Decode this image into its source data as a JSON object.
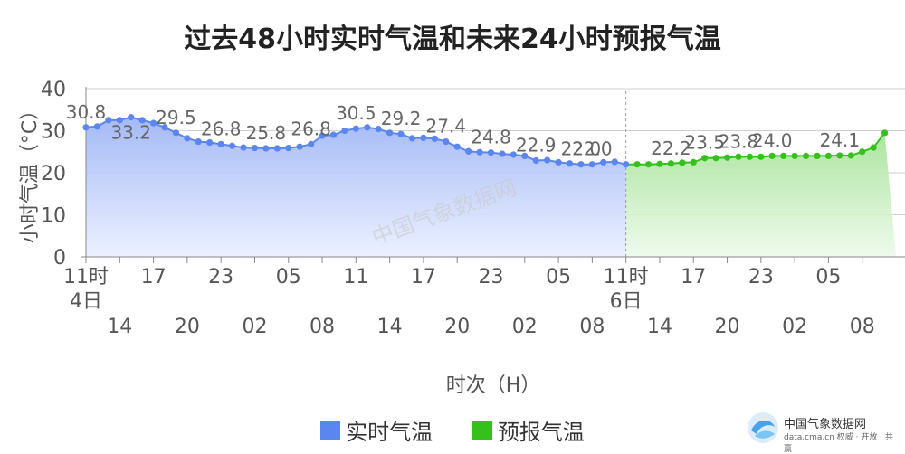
{
  "chart_data": {
    "type": "line",
    "title": "过去48小时实时气温和未来24小时预报气温",
    "xlabel": "时次（H）",
    "ylabel": "小时气温（°C）",
    "ylim": [
      0,
      40
    ],
    "yticks": [
      "0",
      "10",
      "20",
      "30",
      "40"
    ],
    "grid": true,
    "legend_position": "bottom",
    "x_ticks_top": [
      "11时",
      "17",
      "23",
      "05",
      "11",
      "17",
      "23",
      "05",
      "11时",
      "17",
      "23",
      "05"
    ],
    "x_ticks_date": [
      "4日",
      "6日"
    ],
    "x_ticks_bottom": [
      "14",
      "20",
      "02",
      "08",
      "14",
      "20",
      "02",
      "08",
      "14",
      "20",
      "02",
      "08"
    ],
    "series": [
      {
        "name": "实时气温",
        "color": "#5b86f0",
        "values": [
          30.8,
          31.0,
          32.5,
          32.5,
          33.2,
          32.5,
          31.8,
          30.8,
          29.5,
          28.2,
          27.4,
          27.2,
          26.8,
          26.4,
          26.0,
          25.9,
          25.8,
          25.8,
          25.9,
          26.2,
          26.8,
          28.8,
          29.0,
          30.0,
          30.5,
          30.8,
          30.4,
          29.5,
          29.2,
          28.2,
          28.3,
          28.1,
          27.4,
          26.2,
          25.1,
          24.9,
          24.8,
          24.5,
          24.3,
          24.0,
          22.9,
          23.0,
          22.5,
          22.2,
          22.0,
          22.0,
          22.5,
          22.6,
          22.0
        ],
        "labels": [
          "30.8",
          "33.2",
          "29.5",
          "26.8",
          "25.8",
          "26.8",
          "30.5",
          "29.2",
          "27.4",
          "24.8",
          "22.9",
          "22.0",
          "22.0"
        ]
      },
      {
        "name": "预报气温",
        "color": "#35c11c",
        "values": [
          22.0,
          22.0,
          22.0,
          22.1,
          22.2,
          22.4,
          22.5,
          23.5,
          23.5,
          23.6,
          23.8,
          23.8,
          23.8,
          24.0,
          24.0,
          24.0,
          24.0,
          24.0,
          24.0,
          24.1,
          24.1,
          25.0,
          26.0,
          29.5
        ],
        "labels": [
          "22.2",
          "23.5",
          "23.8",
          "24.0",
          "24.1"
        ]
      }
    ]
  },
  "watermark": {
    "center_text": "中国气象数据网",
    "logo_name": "中国气象数据网",
    "logo_url": "data.cma.cn 权威 · 开放 · 共赢"
  }
}
